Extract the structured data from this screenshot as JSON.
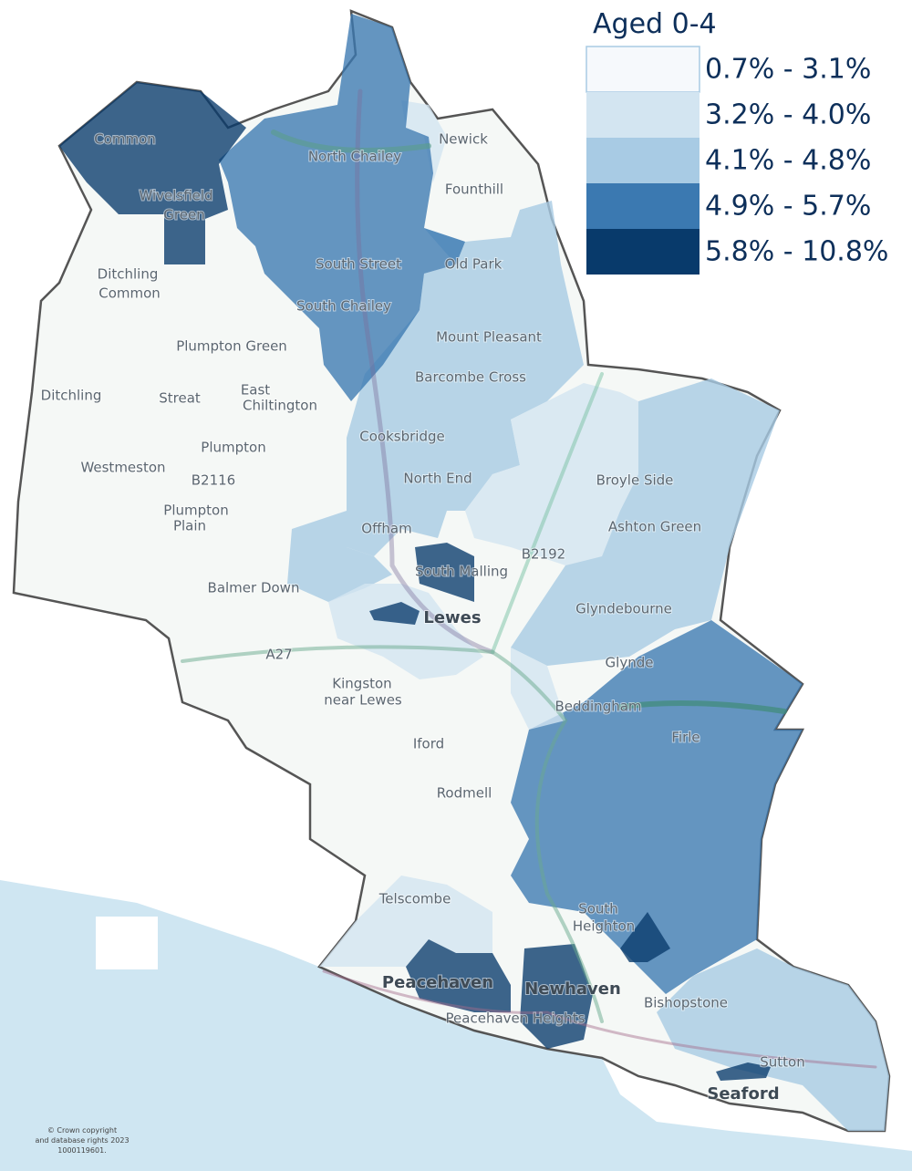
{
  "legend": {
    "title": "Aged 0-4",
    "items": [
      {
        "label": "0.7% - 3.1%",
        "color": "#f6f9fc"
      },
      {
        "label": "3.2% - 4.0%",
        "color": "#d3e5f1"
      },
      {
        "label": "4.1% - 4.8%",
        "color": "#a8cbe4"
      },
      {
        "label": "4.9% - 5.7%",
        "color": "#3b79b1"
      },
      {
        "label": "5.8% - 10.8%",
        "color": "#083a6b"
      }
    ]
  },
  "places": [
    "Common",
    "Wivelsfield",
    "Green",
    "Newick",
    "North Chailey",
    "Founthill",
    "South Street",
    "Old Park",
    "South Chailey",
    "Ditchling",
    "Common",
    "Plumpton Green",
    "Mount Pleasant",
    "Barcombe Cross",
    "Ditchling",
    "Streat",
    "East",
    "Chiltington",
    "Cooksbridge",
    "Plumpton",
    "Westmeston",
    "B2116",
    "North End",
    "Broyle Side",
    "Plumpton",
    "Plain",
    "Offham",
    "Ashton Green",
    "B2192",
    "South Malling",
    "Balmer Down",
    "Glyndebourne",
    "Lewes",
    "A27",
    "Glynde",
    "Kingston",
    "near Lewes",
    "Beddingham",
    "Firle",
    "Iford",
    "Rodmell",
    "Telscombe",
    "South",
    "Heighton",
    "Peacehaven",
    "Newhaven",
    "Bishopstone",
    "Peacehaven Heights",
    "Sutton",
    "Seaford"
  ],
  "copyright": [
    "© Crown copyright",
    "and database rights 2023",
    "1000119601."
  ]
}
